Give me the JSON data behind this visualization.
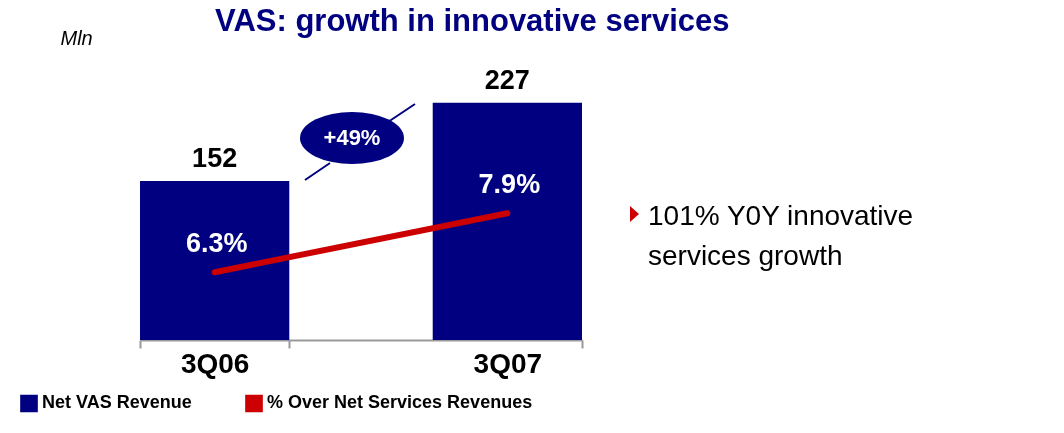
{
  "chart_data": {
    "type": "bar",
    "title": "VAS: growth in innovative services",
    "ylabel": "Mln",
    "categories": [
      "3Q06",
      "3Q07"
    ],
    "series": [
      {
        "name": "Net VAS Revenue",
        "color": "#000080",
        "values": [
          152,
          227
        ],
        "value_labels": [
          "152",
          "227"
        ]
      },
      {
        "name": "% Over Net Services Revenues",
        "type": "line",
        "axis": "y2",
        "color": "#cc0000",
        "values": [
          6.3,
          7.9
        ],
        "value_labels": [
          "6.3%",
          "7.9%"
        ]
      }
    ],
    "annotations": [
      "+49%",
      "101% Y0Y innovative services growth"
    ],
    "legend": "bottom left",
    "grid": false,
    "marker": "none",
    "line_style": "solid"
  }
}
